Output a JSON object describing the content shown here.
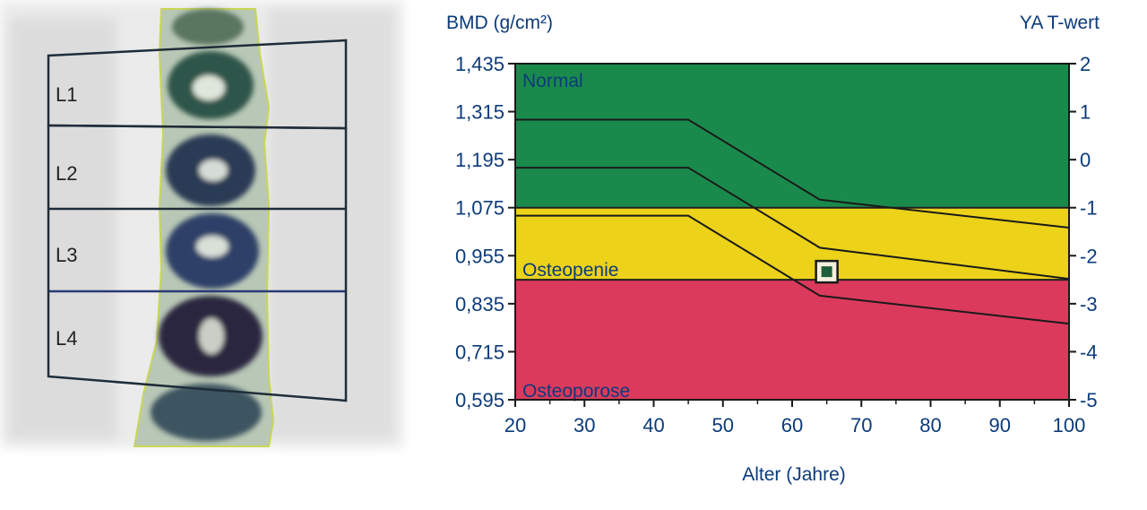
{
  "spine_scan": {
    "vertebrae": [
      "L1",
      "L2",
      "L3",
      "L4"
    ]
  },
  "chart_data": {
    "type": "line",
    "ylabel_left": "BMD (g/cm²)",
    "ylabel_right": "YA T-wert",
    "xlabel": "Alter (Jahre)",
    "xlim": [
      20,
      100
    ],
    "ylim": [
      0.595,
      1.435
    ],
    "x_ticks": [
      "20",
      "30",
      "40",
      "50",
      "60",
      "70",
      "80",
      "90",
      "100"
    ],
    "y_ticks_left": [
      "1,435",
      "1,315",
      "1,195",
      "1,075",
      "0,955",
      "0,835",
      "0,715",
      "0,595"
    ],
    "y_tick_values_left": [
      1.435,
      1.315,
      1.195,
      1.075,
      0.955,
      0.835,
      0.715,
      0.595
    ],
    "y_ticks_right": [
      "2",
      "1",
      "0",
      "-1",
      "-2",
      "-3",
      "-4",
      "-5"
    ],
    "zones": [
      {
        "label": "Normal",
        "from": 1.075,
        "to": 1.435,
        "color": "#1a8a4c"
      },
      {
        "label": "Osteopenie",
        "from": 0.895,
        "to": 1.075,
        "color": "#ecd219"
      },
      {
        "label": "Osteoporose",
        "from": 0.595,
        "to": 0.895,
        "color": "#db3a5c"
      }
    ],
    "series": [
      {
        "x": [
          20,
          45,
          64,
          100
        ],
        "y": [
          1.295,
          1.295,
          1.095,
          1.025
        ]
      },
      {
        "x": [
          20,
          45,
          64,
          100
        ],
        "y": [
          1.175,
          1.175,
          0.975,
          0.897
        ]
      },
      {
        "x": [
          20,
          45,
          64,
          100
        ],
        "y": [
          1.055,
          1.055,
          0.855,
          0.785
        ]
      }
    ],
    "patient_point": {
      "x": 65,
      "y": 0.915
    },
    "grid": false
  }
}
